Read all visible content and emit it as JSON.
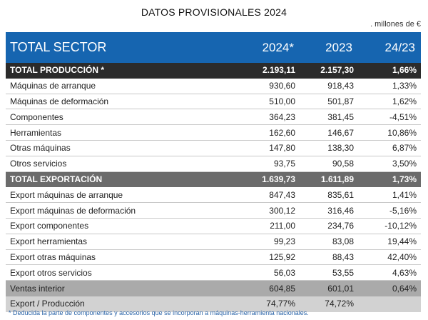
{
  "title": "DATOS PROVISIONALES 2024",
  "units": ". millones de €",
  "header": {
    "label": "TOTAL SECTOR",
    "col_a": "2024*",
    "col_b": "2023",
    "col_c": "24/23"
  },
  "rows": [
    {
      "label": "TOTAL PRODUCCIÓN *",
      "a": "2.193,11",
      "b": "2.157,30",
      "c": "1,66%"
    },
    {
      "label": "Máquinas de arranque",
      "a": "930,60",
      "b": "918,43",
      "c": "1,33%"
    },
    {
      "label": "Máquinas de deformación",
      "a": "510,00",
      "b": "501,87",
      "c": "1,62%"
    },
    {
      "label": "Componentes",
      "a": "364,23",
      "b": "381,45",
      "c": "-4,51%"
    },
    {
      "label": "Herramientas",
      "a": "162,60",
      "b": "146,67",
      "c": "10,86%"
    },
    {
      "label": "Otras máquinas",
      "a": "147,80",
      "b": "138,30",
      "c": "6,87%"
    },
    {
      "label": "Otros servicios",
      "a": "93,75",
      "b": "90,58",
      "c": "3,50%"
    },
    {
      "label": "TOTAL EXPORTACIÓN",
      "a": "1.639,73",
      "b": "1.611,89",
      "c": "1,73%"
    },
    {
      "label": "Export máquinas de arranque",
      "a": "847,43",
      "b": "835,61",
      "c": "1,41%"
    },
    {
      "label": "Export máquinas de deformación",
      "a": "300,12",
      "b": "316,46",
      "c": "-5,16%"
    },
    {
      "label": "Export componentes",
      "a": "211,00",
      "b": "234,76",
      "c": "-10,12%"
    },
    {
      "label": "Export herramientas",
      "a": "99,23",
      "b": "83,08",
      "c": "19,44%"
    },
    {
      "label": "Export otras máquinas",
      "a": "125,92",
      "b": "88,43",
      "c": "42,40%"
    },
    {
      "label": "Export otros servicios",
      "a": "56,03",
      "b": "53,55",
      "c": "4,63%"
    },
    {
      "label": "Ventas interior",
      "a": "604,85",
      "b": "601,01",
      "c": "0,64%"
    },
    {
      "label": "Export / Producción",
      "a": "74,77%",
      "b": "74,72%",
      "c": ""
    }
  ],
  "footnote": "* Deducida la parte de componentes y accesorios que se incorporan a máquinas-herramienta nacionales."
}
